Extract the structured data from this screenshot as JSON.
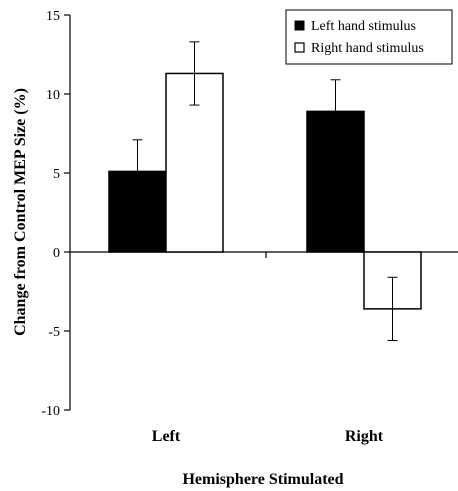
{
  "chart_data": {
    "type": "bar",
    "categories": [
      "Left",
      "Right"
    ],
    "series": [
      {
        "name": "Left hand stimulus",
        "values": [
          5.1,
          8.9
        ],
        "errors": [
          2.0,
          2.0
        ],
        "color": "#000000"
      },
      {
        "name": "Right hand stimulus",
        "values": [
          11.3,
          -3.6
        ],
        "errors": [
          2.0,
          2.0
        ],
        "color": "#ffffff"
      }
    ],
    "title": "",
    "xlabel": "Hemisphere Stimulated",
    "ylabel": "Change from Control MEP Size (%)",
    "ylim": [
      -10,
      15
    ],
    "yticks": [
      15,
      10,
      5,
      0,
      -5,
      -10
    ],
    "ytick_labels": [
      "15",
      "10",
      "5",
      "0",
      "-5",
      "-10"
    ],
    "grid": false,
    "legend_position": "top-right"
  }
}
